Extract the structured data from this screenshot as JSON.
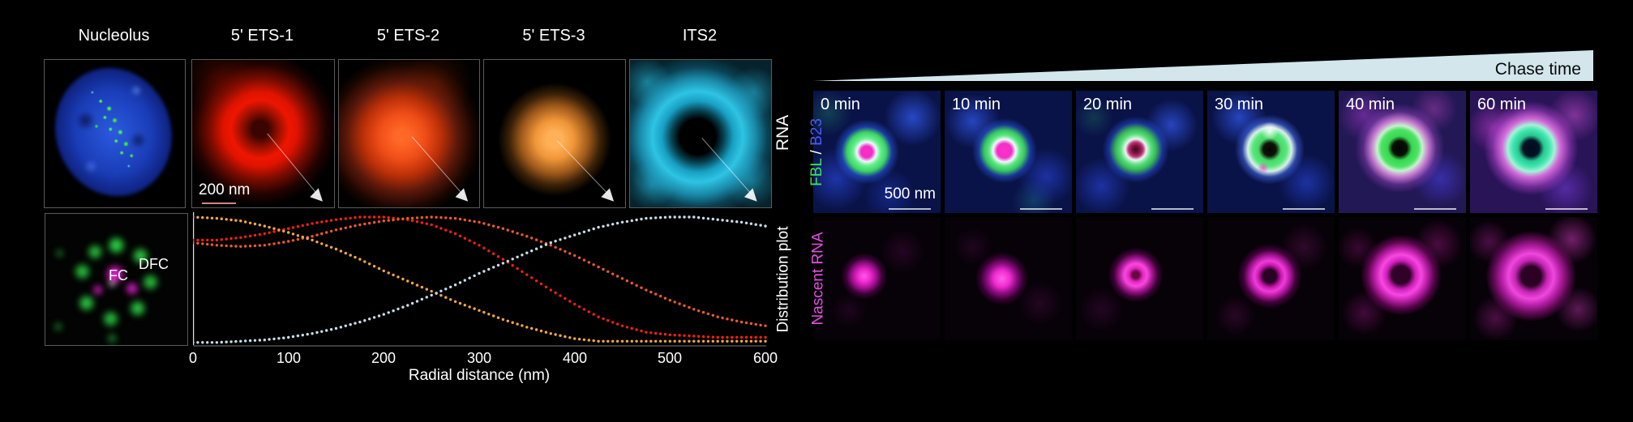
{
  "left_figure": {
    "panel_labels": [
      "Nucleolus",
      "5' ETS-1",
      "5' ETS-2",
      "5' ETS-3",
      "ITS2"
    ],
    "row_labels": {
      "top": "RNA",
      "bottom": "Distribution plot"
    },
    "scale_bar": "200 nm",
    "annotations": {
      "dfc": "DFC",
      "fc": "FC"
    }
  },
  "chart_data": {
    "type": "scatter",
    "style": "dotted-curves",
    "xlabel": "Radial distance (nm)",
    "ylabel": "",
    "xlim": [
      0,
      600
    ],
    "ylim": [
      0,
      1
    ],
    "grid": false,
    "legend_position": "none",
    "xticks": [
      "0",
      "100",
      "200",
      "300",
      "400",
      "500",
      "600"
    ],
    "r": [
      0,
      25,
      50,
      75,
      100,
      125,
      150,
      175,
      200,
      225,
      250,
      275,
      300,
      325,
      350,
      375,
      400,
      425,
      450,
      475,
      500,
      525,
      550,
      575,
      600
    ],
    "series": [
      {
        "name": "5' ETS-1",
        "color": "#f5200f",
        "values": [
          0.82,
          0.82,
          0.84,
          0.87,
          0.91,
          0.95,
          0.98,
          1.0,
          1.0,
          0.98,
          0.94,
          0.87,
          0.78,
          0.67,
          0.55,
          0.43,
          0.32,
          0.22,
          0.15,
          0.1,
          0.08,
          0.07,
          0.06,
          0.06,
          0.06
        ]
      },
      {
        "name": "5' ETS-2",
        "color": "#ef5a28",
        "values": [
          0.8,
          0.78,
          0.77,
          0.78,
          0.81,
          0.85,
          0.9,
          0.94,
          0.97,
          0.99,
          1.0,
          0.99,
          0.96,
          0.91,
          0.85,
          0.78,
          0.7,
          0.61,
          0.52,
          0.43,
          0.35,
          0.28,
          0.22,
          0.18,
          0.15
        ]
      },
      {
        "name": "5' ETS-3",
        "color": "#f6a83e",
        "values": [
          1.0,
          0.99,
          0.97,
          0.93,
          0.88,
          0.82,
          0.75,
          0.67,
          0.58,
          0.5,
          0.42,
          0.34,
          0.27,
          0.2,
          0.14,
          0.09,
          0.05,
          0.03,
          0.03,
          0.03,
          0.03,
          0.03,
          0.03,
          0.03,
          0.03
        ]
      },
      {
        "name": "ITS2",
        "color": "#c6dde9",
        "values": [
          0.02,
          0.02,
          0.03,
          0.04,
          0.06,
          0.09,
          0.13,
          0.18,
          0.24,
          0.31,
          0.39,
          0.47,
          0.56,
          0.64,
          0.72,
          0.8,
          0.86,
          0.92,
          0.96,
          0.99,
          1.0,
          1.0,
          0.98,
          0.96,
          0.93
        ]
      }
    ]
  },
  "right_figure": {
    "chase_time_label": "Chase time",
    "time_points": [
      "0 min",
      "10 min",
      "20 min",
      "30 min",
      "40 min",
      "60 min"
    ],
    "row1_label": {
      "fbl": "FBL",
      "separator": " / ",
      "b23": "B23"
    },
    "row2_label": "Nascent RNA",
    "scale_bar": "500 nm",
    "colors": {
      "fbl_green": "#3fe060",
      "b23_blue": "#4a5cf0",
      "nascent_magenta": "#e050e0",
      "wedge_fill": "#d2e6ec"
    }
  }
}
